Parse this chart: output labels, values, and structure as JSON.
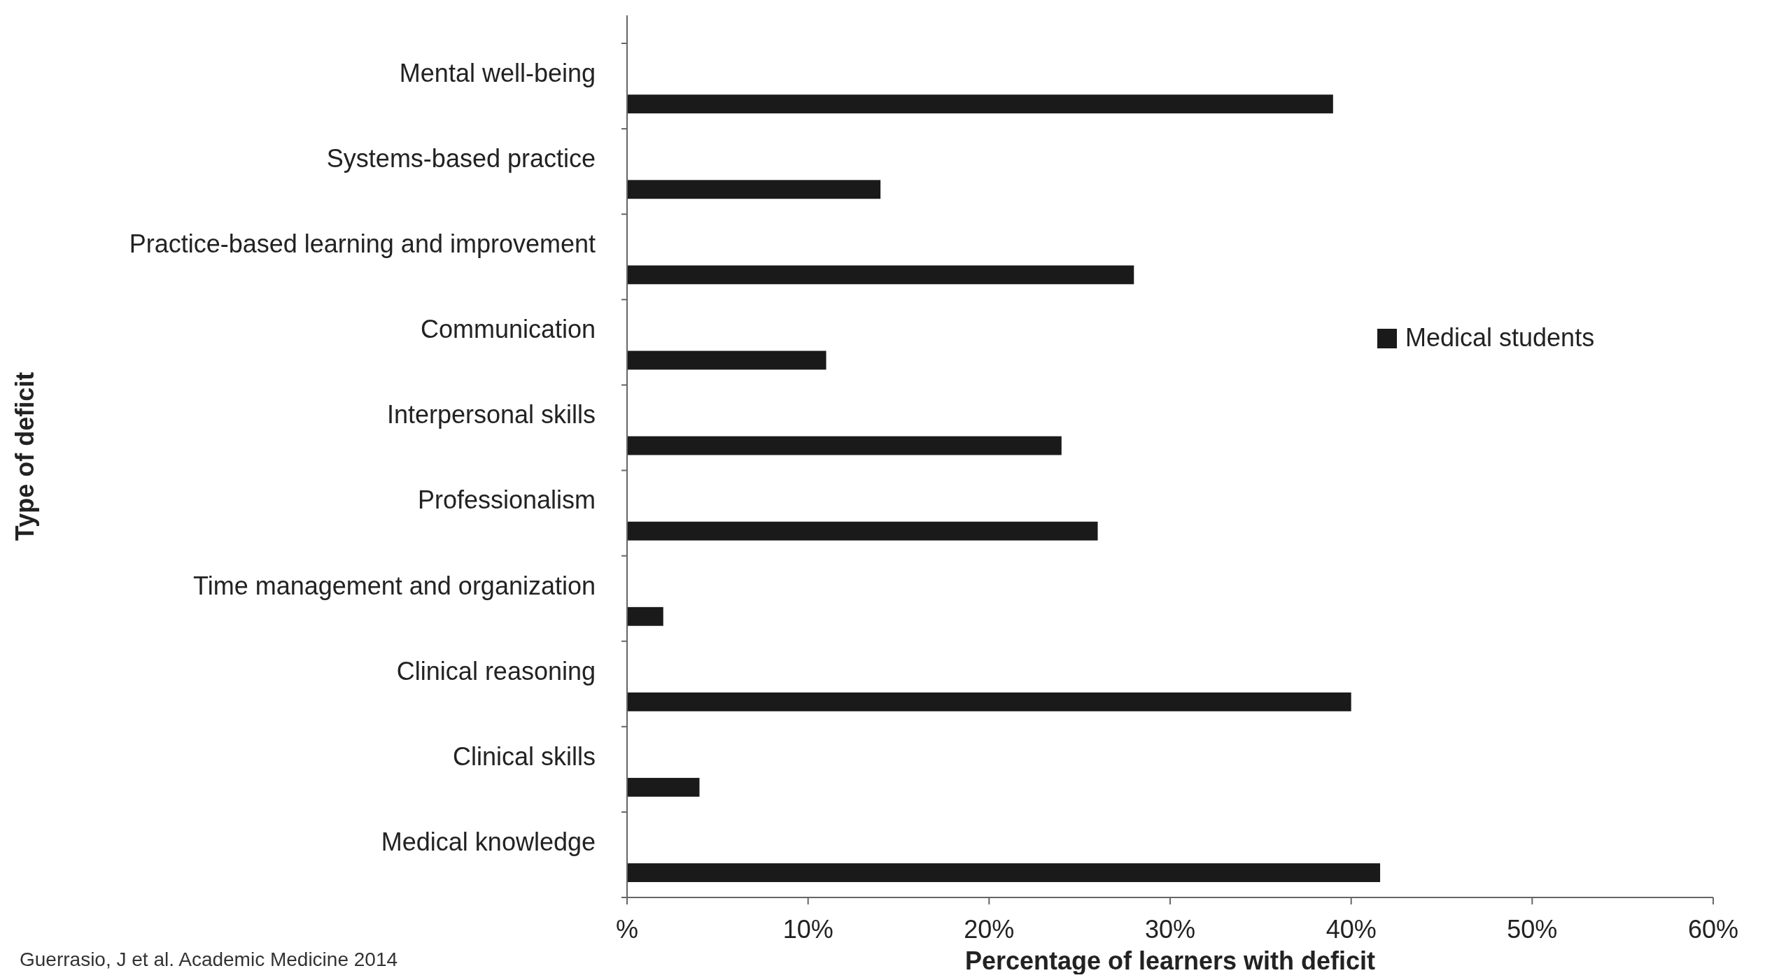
{
  "chart_data": {
    "type": "bar",
    "orientation": "horizontal",
    "xlabel": "Percentage of learners with deficit",
    "ylabel": "Type of deficit",
    "categories": [
      "Mental well-being",
      "Systems-based practice",
      "Practice-based learning and improvement",
      "Communication",
      "Interpersonal skills",
      "Professionalism",
      "Time management and organization",
      "Clinical reasoning",
      "Clinical skills",
      "Medical knowledge"
    ],
    "series": [
      {
        "name": "Medical students",
        "color": "#1a1a1a",
        "values": [
          39,
          14,
          28,
          11,
          24,
          26,
          2,
          40,
          4,
          41.6
        ]
      }
    ],
    "xlim": [
      0,
      60
    ],
    "xticks": [
      {
        "value": 0,
        "label": "%"
      },
      {
        "value": 10,
        "label": "10%"
      },
      {
        "value": 20,
        "label": "20%"
      },
      {
        "value": 30,
        "label": "30%"
      },
      {
        "value": 40,
        "label": "40%"
      },
      {
        "value": 50,
        "label": "50%"
      },
      {
        "value": 60,
        "label": "60%"
      }
    ],
    "legend": "right",
    "grid": false,
    "annotations": [
      "Guerrasio, J et al. Academic Medicine 2014"
    ]
  }
}
